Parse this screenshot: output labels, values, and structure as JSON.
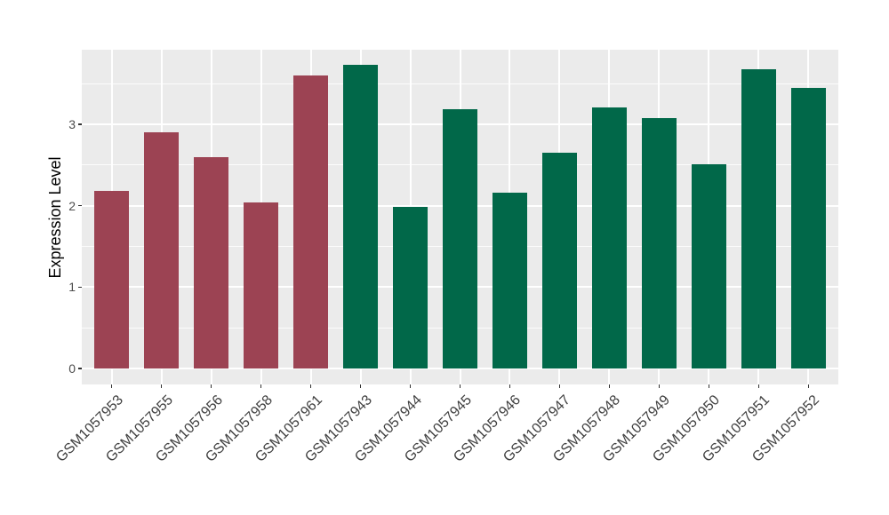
{
  "chart_data": {
    "type": "bar",
    "title": "",
    "xlabel": "",
    "ylabel": "Expression Level",
    "categories": [
      "GSM1057953",
      "GSM1057955",
      "GSM1057956",
      "GSM1057958",
      "GSM1057961",
      "GSM1057943",
      "GSM1057944",
      "GSM1057945",
      "GSM1057946",
      "GSM1057947",
      "GSM1057948",
      "GSM1057949",
      "GSM1057950",
      "GSM1057951",
      "GSM1057952"
    ],
    "values": [
      2.18,
      2.9,
      2.6,
      2.04,
      3.6,
      3.73,
      1.99,
      3.18,
      2.16,
      2.65,
      3.21,
      3.07,
      2.51,
      3.68,
      3.45
    ],
    "groups": [
      "A",
      "A",
      "A",
      "A",
      "A",
      "B",
      "B",
      "B",
      "B",
      "B",
      "B",
      "B",
      "B",
      "B",
      "B"
    ],
    "group_colors": {
      "A": "#9C4353",
      "B": "#016849"
    },
    "y_ticks": [
      0,
      1,
      2,
      3
    ],
    "y_minor_ticks": [
      0.5,
      1.5,
      2.5,
      3.5
    ],
    "ylim": [
      0,
      3.92
    ],
    "grid": true,
    "legend_position": "none",
    "x_label_rotation_deg": 45,
    "panel_background": "#EBEBEB",
    "grid_color": "#FFFFFF",
    "axis_text_color": "#4D4D4D"
  }
}
